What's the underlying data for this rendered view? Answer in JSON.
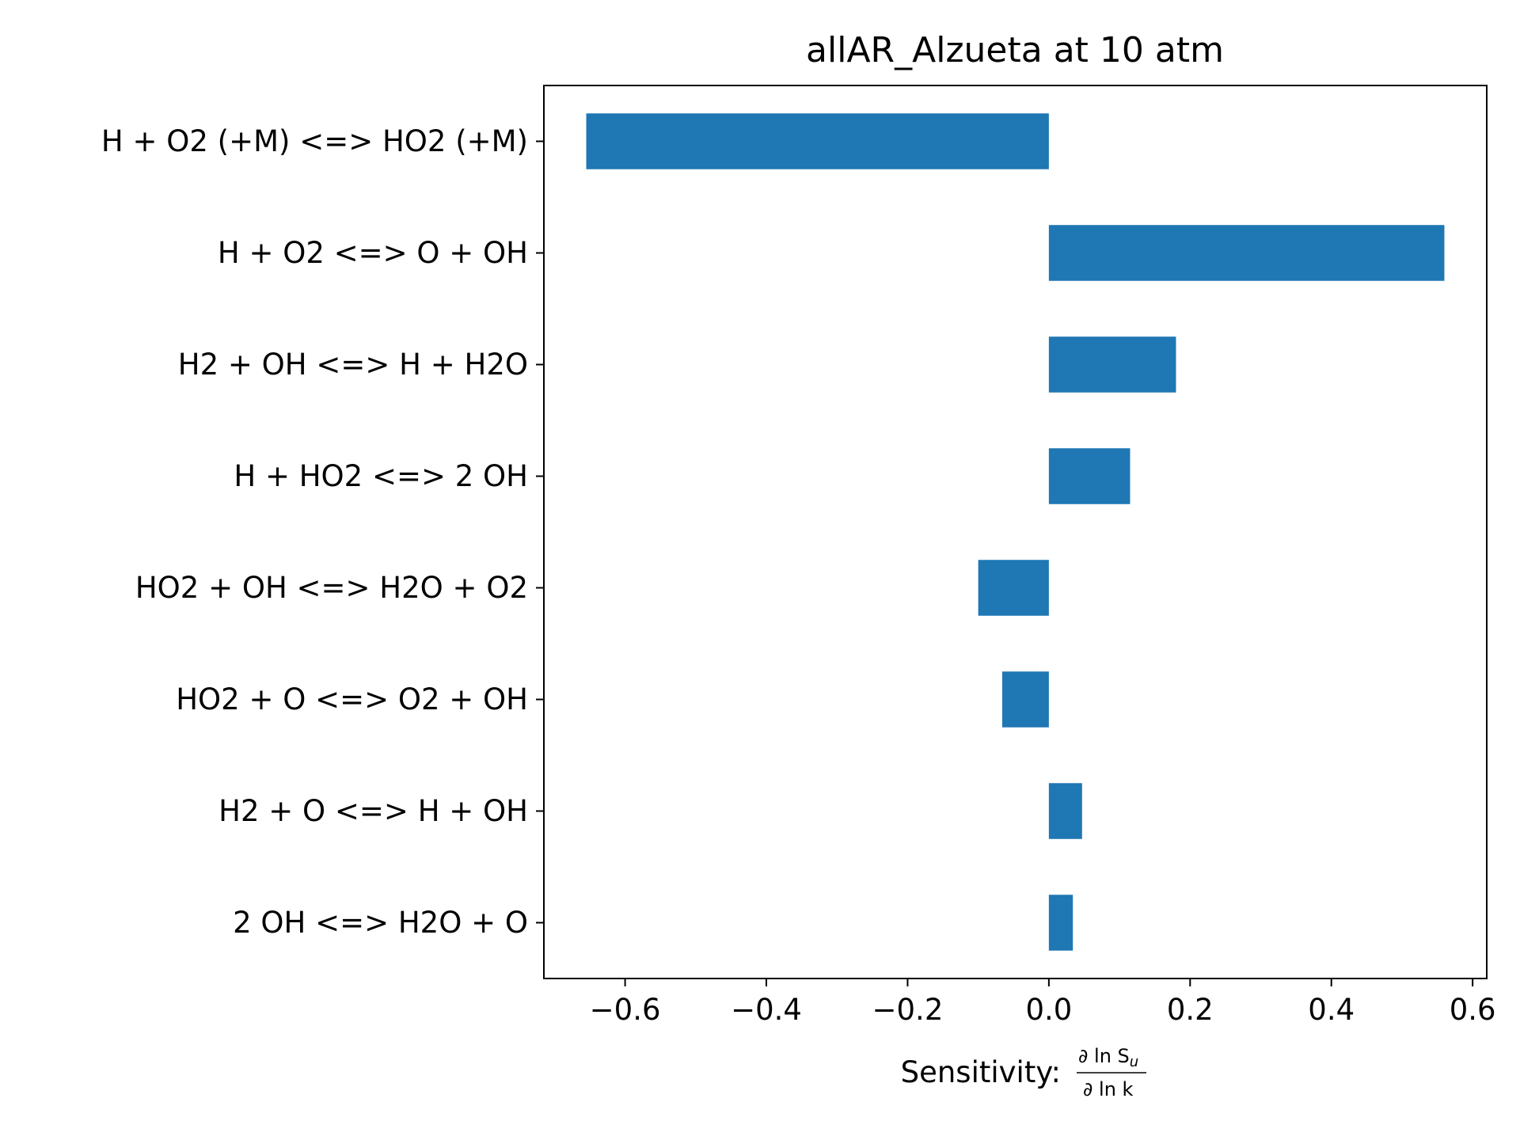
{
  "chart_data": {
    "type": "bar",
    "orientation": "horizontal",
    "title": "allAR_Alzueta at 10 atm",
    "xlabel": "Sensitivity:",
    "xlabel_fraction": {
      "numerator": "∂ ln S",
      "numerator_subscript": "u",
      "denominator": "∂ ln k"
    },
    "ylabel": "",
    "categories": [
      "H + O2 (+M) <=> HO2 (+M)",
      "H + O2 <=> O + OH",
      "H2 + OH <=> H + H2O",
      "H + HO2 <=> 2 OH",
      "HO2 + OH <=> H2O + O2",
      "HO2 + O <=> O2 + OH",
      "H2 + O <=> H + OH",
      "2 OH <=> H2O + O"
    ],
    "values": [
      -0.655,
      0.56,
      0.18,
      0.115,
      -0.1,
      -0.066,
      0.047,
      0.034
    ],
    "xlim": [
      -0.715,
      0.62
    ],
    "xticks": [
      -0.6,
      -0.4,
      -0.2,
      0.0,
      0.2,
      0.4,
      0.6
    ],
    "xtick_labels": [
      "−0.6",
      "−0.4",
      "−0.2",
      "0.0",
      "0.2",
      "0.4",
      "0.6"
    ],
    "grid": false,
    "legend": "none",
    "bar_color": "#1f77b4"
  }
}
